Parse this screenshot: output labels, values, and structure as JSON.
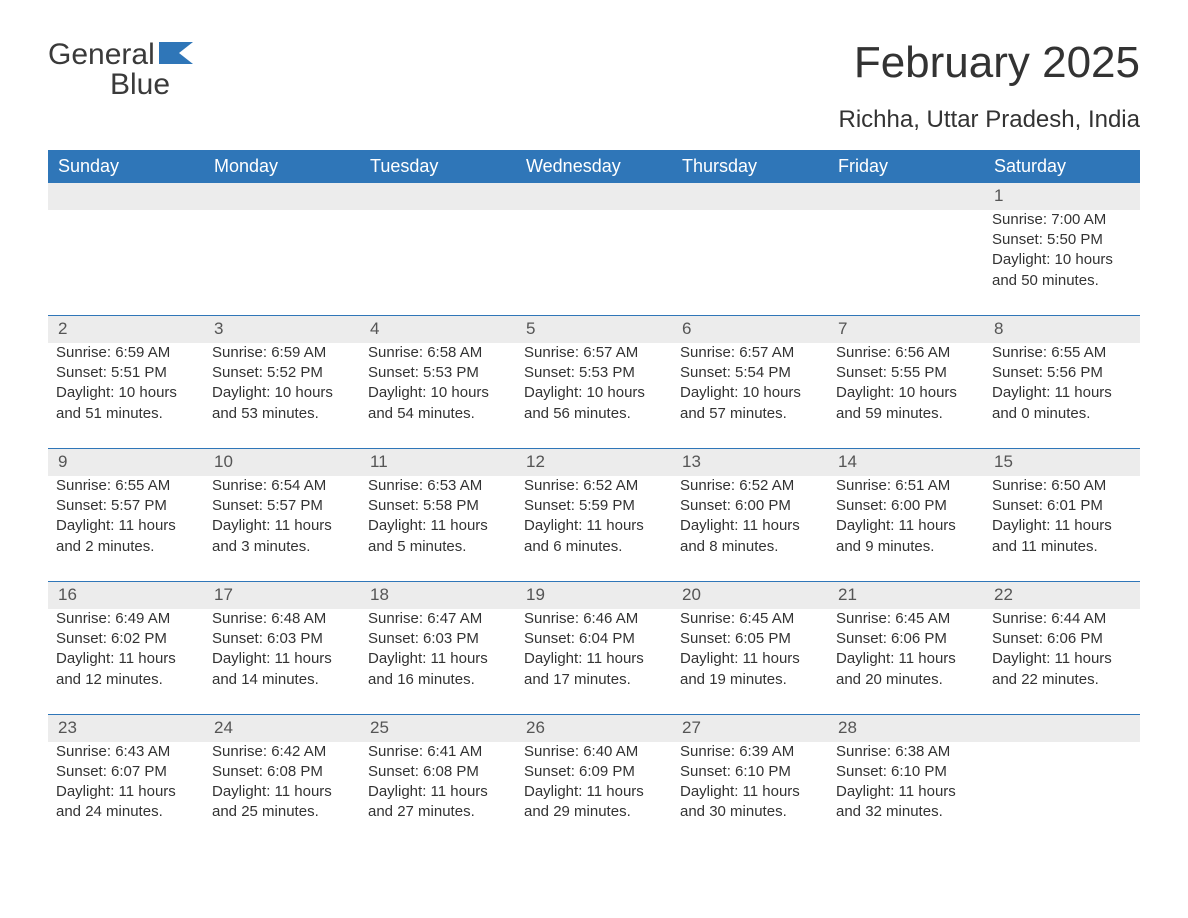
{
  "logo": {
    "word1": "General",
    "word2": "Blue"
  },
  "title": "February 2025",
  "location": "Richha, Uttar Pradesh, India",
  "colors": {
    "header_bg": "#2f76b8",
    "header_text": "#ffffff",
    "daynum_bg": "#ececec",
    "text": "#333333",
    "rule": "#2f76b8",
    "logo_blue": "#2f76b8"
  },
  "weekdays": [
    "Sunday",
    "Monday",
    "Tuesday",
    "Wednesday",
    "Thursday",
    "Friday",
    "Saturday"
  ],
  "weeks": [
    [
      null,
      null,
      null,
      null,
      null,
      null,
      {
        "n": 1,
        "sunrise": "7:00 AM",
        "sunset": "5:50 PM",
        "dl1": "Daylight: 10 hours",
        "dl2": "and 50 minutes."
      }
    ],
    [
      {
        "n": 2,
        "sunrise": "6:59 AM",
        "sunset": "5:51 PM",
        "dl1": "Daylight: 10 hours",
        "dl2": "and 51 minutes."
      },
      {
        "n": 3,
        "sunrise": "6:59 AM",
        "sunset": "5:52 PM",
        "dl1": "Daylight: 10 hours",
        "dl2": "and 53 minutes."
      },
      {
        "n": 4,
        "sunrise": "6:58 AM",
        "sunset": "5:53 PM",
        "dl1": "Daylight: 10 hours",
        "dl2": "and 54 minutes."
      },
      {
        "n": 5,
        "sunrise": "6:57 AM",
        "sunset": "5:53 PM",
        "dl1": "Daylight: 10 hours",
        "dl2": "and 56 minutes."
      },
      {
        "n": 6,
        "sunrise": "6:57 AM",
        "sunset": "5:54 PM",
        "dl1": "Daylight: 10 hours",
        "dl2": "and 57 minutes."
      },
      {
        "n": 7,
        "sunrise": "6:56 AM",
        "sunset": "5:55 PM",
        "dl1": "Daylight: 10 hours",
        "dl2": "and 59 minutes."
      },
      {
        "n": 8,
        "sunrise": "6:55 AM",
        "sunset": "5:56 PM",
        "dl1": "Daylight: 11 hours",
        "dl2": "and 0 minutes."
      }
    ],
    [
      {
        "n": 9,
        "sunrise": "6:55 AM",
        "sunset": "5:57 PM",
        "dl1": "Daylight: 11 hours",
        "dl2": "and 2 minutes."
      },
      {
        "n": 10,
        "sunrise": "6:54 AM",
        "sunset": "5:57 PM",
        "dl1": "Daylight: 11 hours",
        "dl2": "and 3 minutes."
      },
      {
        "n": 11,
        "sunrise": "6:53 AM",
        "sunset": "5:58 PM",
        "dl1": "Daylight: 11 hours",
        "dl2": "and 5 minutes."
      },
      {
        "n": 12,
        "sunrise": "6:52 AM",
        "sunset": "5:59 PM",
        "dl1": "Daylight: 11 hours",
        "dl2": "and 6 minutes."
      },
      {
        "n": 13,
        "sunrise": "6:52 AM",
        "sunset": "6:00 PM",
        "dl1": "Daylight: 11 hours",
        "dl2": "and 8 minutes."
      },
      {
        "n": 14,
        "sunrise": "6:51 AM",
        "sunset": "6:00 PM",
        "dl1": "Daylight: 11 hours",
        "dl2": "and 9 minutes."
      },
      {
        "n": 15,
        "sunrise": "6:50 AM",
        "sunset": "6:01 PM",
        "dl1": "Daylight: 11 hours",
        "dl2": "and 11 minutes."
      }
    ],
    [
      {
        "n": 16,
        "sunrise": "6:49 AM",
        "sunset": "6:02 PM",
        "dl1": "Daylight: 11 hours",
        "dl2": "and 12 minutes."
      },
      {
        "n": 17,
        "sunrise": "6:48 AM",
        "sunset": "6:03 PM",
        "dl1": "Daylight: 11 hours",
        "dl2": "and 14 minutes."
      },
      {
        "n": 18,
        "sunrise": "6:47 AM",
        "sunset": "6:03 PM",
        "dl1": "Daylight: 11 hours",
        "dl2": "and 16 minutes."
      },
      {
        "n": 19,
        "sunrise": "6:46 AM",
        "sunset": "6:04 PM",
        "dl1": "Daylight: 11 hours",
        "dl2": "and 17 minutes."
      },
      {
        "n": 20,
        "sunrise": "6:45 AM",
        "sunset": "6:05 PM",
        "dl1": "Daylight: 11 hours",
        "dl2": "and 19 minutes."
      },
      {
        "n": 21,
        "sunrise": "6:45 AM",
        "sunset": "6:06 PM",
        "dl1": "Daylight: 11 hours",
        "dl2": "and 20 minutes."
      },
      {
        "n": 22,
        "sunrise": "6:44 AM",
        "sunset": "6:06 PM",
        "dl1": "Daylight: 11 hours",
        "dl2": "and 22 minutes."
      }
    ],
    [
      {
        "n": 23,
        "sunrise": "6:43 AM",
        "sunset": "6:07 PM",
        "dl1": "Daylight: 11 hours",
        "dl2": "and 24 minutes."
      },
      {
        "n": 24,
        "sunrise": "6:42 AM",
        "sunset": "6:08 PM",
        "dl1": "Daylight: 11 hours",
        "dl2": "and 25 minutes."
      },
      {
        "n": 25,
        "sunrise": "6:41 AM",
        "sunset": "6:08 PM",
        "dl1": "Daylight: 11 hours",
        "dl2": "and 27 minutes."
      },
      {
        "n": 26,
        "sunrise": "6:40 AM",
        "sunset": "6:09 PM",
        "dl1": "Daylight: 11 hours",
        "dl2": "and 29 minutes."
      },
      {
        "n": 27,
        "sunrise": "6:39 AM",
        "sunset": "6:10 PM",
        "dl1": "Daylight: 11 hours",
        "dl2": "and 30 minutes."
      },
      {
        "n": 28,
        "sunrise": "6:38 AM",
        "sunset": "6:10 PM",
        "dl1": "Daylight: 11 hours",
        "dl2": "and 32 minutes."
      },
      null
    ]
  ],
  "labels": {
    "sunrise_prefix": "Sunrise: ",
    "sunset_prefix": "Sunset: "
  }
}
